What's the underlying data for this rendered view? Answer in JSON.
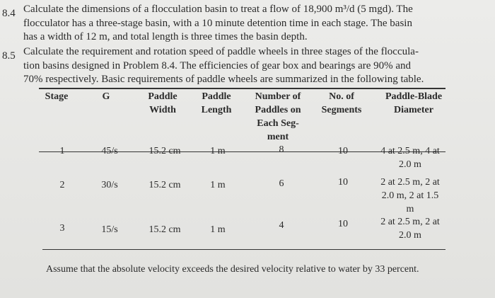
{
  "problems": [
    {
      "number": "8.4",
      "lines": [
        "Calculate the dimensions of a flocculation basin to treat a flow of 18,900 m³/d (5 mgd). The",
        "flocculator has a three-stage basin, with a 10 minute detention time in each stage. The basin",
        "has a width of 12 m, and total length is three times the basin depth."
      ]
    },
    {
      "number": "8.5",
      "lines": [
        "Calculate the requirement and rotation speed of paddle wheels in three stages of the floccula-",
        "tion basins designed in Problem 8.4. The efficiencies of gear box and bearings are 90% and",
        "70% respectively. Basic requirements of paddle wheels are summarized in the following table."
      ]
    }
  ],
  "table": {
    "header": [
      [
        "Stage"
      ],
      [
        "G"
      ],
      [
        "Paddle",
        "Width"
      ],
      [
        "Paddle",
        "Length"
      ],
      [
        "Number of",
        "Paddles on",
        "Each Seg-",
        "ment"
      ],
      [
        "No. of",
        "Segments"
      ],
      [
        "Paddle-Blade",
        "Diameter"
      ]
    ],
    "rows": [
      [
        [
          "1"
        ],
        [
          "45/s"
        ],
        [
          "15.2 cm"
        ],
        [
          "1 m"
        ],
        [
          "8"
        ],
        [
          "10"
        ],
        [
          "4 at 2.5 m, 4 at",
          "2.0 m"
        ]
      ],
      [
        [
          "2"
        ],
        [
          "30/s"
        ],
        [
          "15.2 cm"
        ],
        [
          "1 m"
        ],
        [
          "6"
        ],
        [
          "10"
        ],
        [
          "2 at 2.5 m, 2 at",
          "2.0 m, 2 at 1.5",
          "m"
        ]
      ],
      [
        [
          "3"
        ],
        [
          "15/s"
        ],
        [
          "15.2 cm"
        ],
        [
          "1 m"
        ],
        [
          "4"
        ],
        [
          "10"
        ],
        [
          "2 at 2.5 m, 2 at",
          "2.0 m"
        ]
      ]
    ]
  },
  "footnote": "Assume that the absolute velocity exceeds the desired velocity relative to water by 33 percent."
}
